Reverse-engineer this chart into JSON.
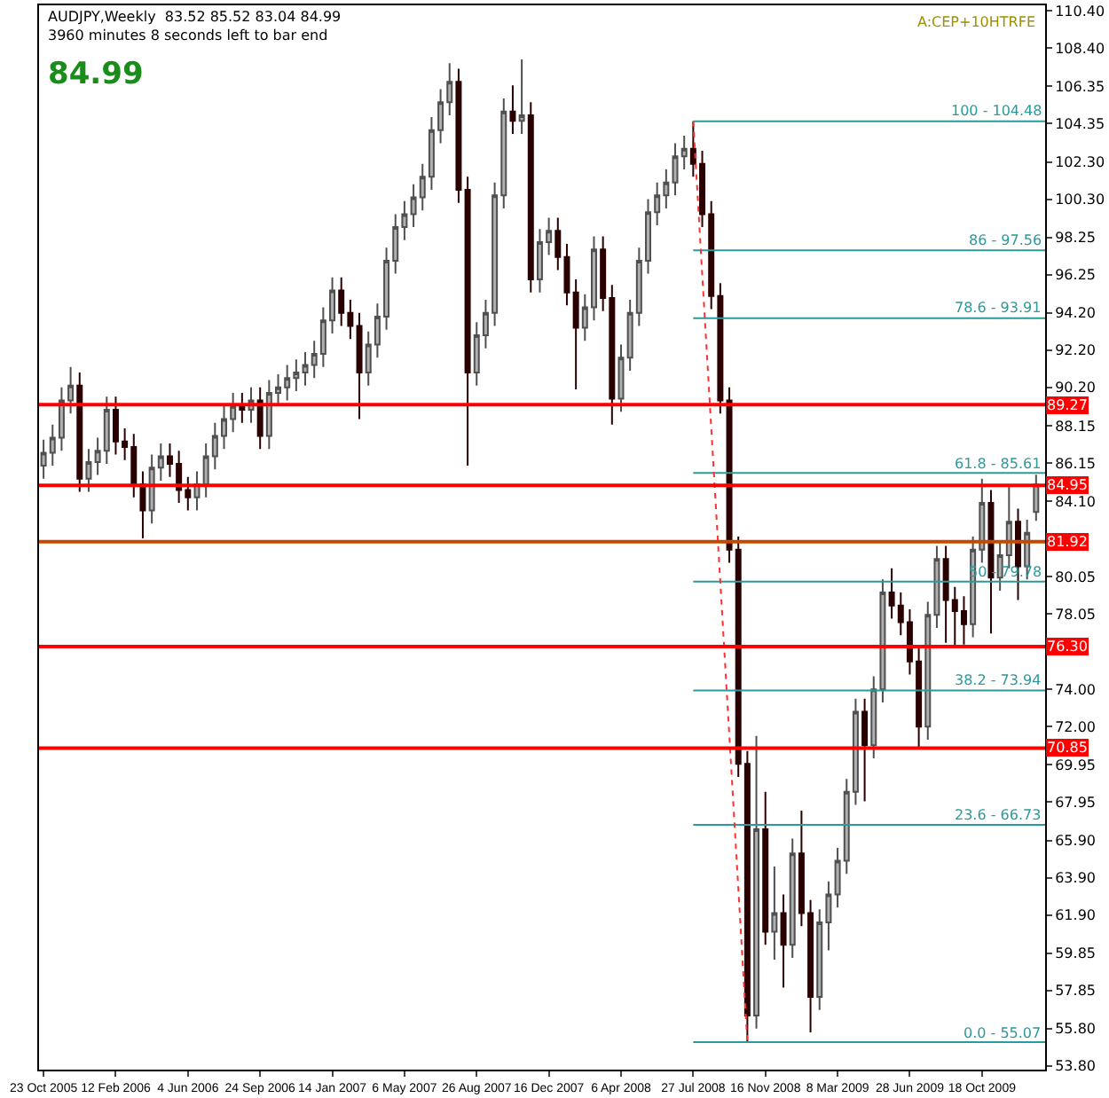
{
  "chart_data": {
    "type": "candlestick",
    "title": "AUDJPY,Weekly  83.52 85.52 83.04 84.99",
    "subtitle": "3960 minutes 8 seconds left to bar end",
    "annotations": [
      "84.99",
      "A:CEP+10HTRFE"
    ],
    "x": [
      "2005-10-23",
      "2005-11-06",
      "2005-11-20",
      "2005-12-04",
      "2005-12-18",
      "2006-01-01",
      "2006-01-15",
      "2006-01-29",
      "2006-02-12",
      "2006-02-26",
      "2006-03-12",
      "2006-03-26",
      "2006-04-09",
      "2006-04-23",
      "2006-05-07",
      "2006-05-21",
      "2006-06-04",
      "2006-06-18",
      "2006-07-02",
      "2006-07-16",
      "2006-07-30",
      "2006-08-13",
      "2006-08-27",
      "2006-09-10",
      "2006-09-24",
      "2006-10-08",
      "2006-10-22",
      "2006-11-05",
      "2006-11-19",
      "2006-12-03",
      "2006-12-17",
      "2006-12-31",
      "2007-01-14",
      "2007-01-28",
      "2007-02-11",
      "2007-02-25",
      "2007-03-11",
      "2007-03-25",
      "2007-04-08",
      "2007-04-22",
      "2007-05-06",
      "2007-05-20",
      "2007-06-03",
      "2007-06-17",
      "2007-07-01",
      "2007-07-15",
      "2007-07-29",
      "2007-08-12",
      "2007-08-26",
      "2007-09-09",
      "2007-09-23",
      "2007-10-07",
      "2007-10-21",
      "2007-11-04",
      "2007-11-18",
      "2007-12-02",
      "2007-12-16",
      "2007-12-30",
      "2008-01-13",
      "2008-01-27",
      "2008-02-10",
      "2008-02-24",
      "2008-03-09",
      "2008-03-23",
      "2008-04-06",
      "2008-04-20",
      "2008-05-04",
      "2008-05-18",
      "2008-06-01",
      "2008-06-15",
      "2008-06-29",
      "2008-07-13",
      "2008-07-27",
      "2008-08-10",
      "2008-08-24",
      "2008-09-07",
      "2008-09-21",
      "2008-10-05",
      "2008-10-19",
      "2008-11-02",
      "2008-11-16",
      "2008-11-30",
      "2008-12-14",
      "2008-12-28",
      "2009-01-11",
      "2009-01-25",
      "2009-02-08",
      "2009-02-22",
      "2009-03-08",
      "2009-03-22",
      "2009-04-05",
      "2009-04-19",
      "2009-05-03",
      "2009-05-17",
      "2009-05-31",
      "2009-06-14",
      "2009-06-28",
      "2009-07-12",
      "2009-07-26",
      "2009-08-09",
      "2009-08-23",
      "2009-09-06",
      "2009-09-20",
      "2009-10-04",
      "2009-10-18",
      "2009-11-01",
      "2009-11-15",
      "2009-11-29",
      "2009-12-13",
      "2009-12-27",
      "2010-01-10"
    ],
    "ohlc": [
      [
        86.0,
        87.4,
        85.3,
        86.7
      ],
      [
        86.7,
        88.2,
        86.0,
        87.5
      ],
      [
        87.5,
        90.2,
        86.8,
        89.5
      ],
      [
        89.5,
        91.3,
        88.8,
        90.3
      ],
      [
        90.3,
        91.0,
        84.6,
        85.3
      ],
      [
        85.3,
        86.9,
        84.6,
        86.2
      ],
      [
        86.2,
        87.5,
        85.5,
        86.8
      ],
      [
        86.8,
        89.7,
        86.1,
        89.0
      ],
      [
        89.0,
        89.7,
        86.6,
        87.3
      ],
      [
        87.3,
        88.0,
        86.3,
        87.0
      ],
      [
        87.0,
        87.7,
        84.3,
        85.0
      ],
      [
        85.0,
        85.7,
        82.1,
        83.6
      ],
      [
        83.6,
        86.6,
        82.9,
        85.9
      ],
      [
        85.9,
        87.2,
        85.2,
        86.5
      ],
      [
        86.5,
        87.2,
        85.4,
        86.1
      ],
      [
        86.1,
        86.8,
        84.0,
        84.7
      ],
      [
        84.7,
        85.4,
        83.6,
        84.3
      ],
      [
        84.3,
        85.7,
        83.6,
        85.0
      ],
      [
        85.0,
        87.2,
        84.3,
        86.5
      ],
      [
        86.5,
        88.3,
        85.8,
        87.6
      ],
      [
        87.6,
        89.2,
        86.9,
        88.5
      ],
      [
        88.5,
        89.9,
        87.8,
        89.2
      ],
      [
        89.2,
        89.9,
        88.3,
        89.0
      ],
      [
        89.0,
        90.2,
        88.3,
        89.5
      ],
      [
        89.5,
        90.2,
        86.9,
        87.6
      ],
      [
        87.6,
        90.6,
        86.9,
        89.9
      ],
      [
        89.9,
        90.9,
        89.2,
        90.2
      ],
      [
        90.2,
        91.4,
        89.5,
        90.7
      ],
      [
        90.7,
        91.7,
        90.0,
        91.0
      ],
      [
        91.0,
        92.1,
        90.3,
        91.4
      ],
      [
        91.4,
        92.7,
        90.7,
        92.0
      ],
      [
        92.0,
        94.5,
        91.3,
        93.8
      ],
      [
        93.8,
        96.1,
        93.1,
        95.4
      ],
      [
        95.4,
        96.1,
        93.5,
        94.2
      ],
      [
        94.2,
        94.9,
        92.8,
        93.5
      ],
      [
        93.5,
        94.2,
        88.5,
        91.0
      ],
      [
        91.0,
        93.2,
        90.3,
        92.5
      ],
      [
        92.5,
        94.7,
        91.8,
        94.0
      ],
      [
        94.0,
        97.7,
        93.3,
        97.0
      ],
      [
        97.0,
        99.5,
        96.3,
        98.8
      ],
      [
        98.8,
        100.2,
        98.1,
        99.5
      ],
      [
        99.5,
        101.1,
        98.8,
        100.4
      ],
      [
        100.4,
        102.2,
        99.7,
        101.5
      ],
      [
        101.5,
        104.7,
        100.8,
        104.0
      ],
      [
        104.0,
        106.2,
        103.3,
        105.5
      ],
      [
        105.5,
        107.6,
        104.8,
        106.6
      ],
      [
        106.6,
        107.3,
        100.1,
        100.8
      ],
      [
        100.8,
        101.5,
        86.0,
        91.0
      ],
      [
        91.0,
        93.7,
        90.3,
        93.0
      ],
      [
        93.0,
        94.9,
        92.3,
        94.2
      ],
      [
        94.2,
        101.2,
        93.5,
        100.5
      ],
      [
        100.5,
        105.7,
        99.8,
        105.0
      ],
      [
        105.0,
        106.4,
        103.8,
        104.5
      ],
      [
        104.5,
        107.8,
        103.8,
        104.8
      ],
      [
        104.8,
        105.5,
        95.3,
        96.0
      ],
      [
        96.0,
        98.7,
        95.3,
        98.0
      ],
      [
        98.0,
        99.3,
        97.3,
        98.6
      ],
      [
        98.6,
        99.3,
        96.5,
        97.2
      ],
      [
        97.2,
        97.9,
        94.6,
        95.3
      ],
      [
        95.3,
        96.0,
        90.1,
        93.4
      ],
      [
        93.4,
        95.2,
        92.7,
        94.5
      ],
      [
        94.5,
        98.3,
        93.8,
        97.6
      ],
      [
        97.6,
        98.3,
        94.3,
        95.0
      ],
      [
        95.0,
        95.7,
        88.2,
        89.6
      ],
      [
        89.6,
        92.5,
        88.9,
        91.8
      ],
      [
        91.8,
        94.9,
        91.1,
        94.2
      ],
      [
        94.2,
        97.7,
        93.5,
        97.0
      ],
      [
        97.0,
        100.3,
        96.3,
        99.6
      ],
      [
        99.6,
        101.2,
        98.9,
        100.5
      ],
      [
        100.5,
        101.9,
        99.8,
        101.2
      ],
      [
        101.2,
        103.3,
        100.5,
        102.6
      ],
      [
        102.6,
        103.7,
        101.9,
        103.0
      ],
      [
        103.0,
        104.48,
        101.5,
        102.2
      ],
      [
        102.2,
        102.9,
        98.8,
        99.5
      ],
      [
        99.5,
        100.2,
        94.4,
        95.1
      ],
      [
        95.1,
        95.8,
        88.8,
        89.5
      ],
      [
        89.5,
        90.2,
        80.8,
        81.5
      ],
      [
        81.5,
        82.2,
        69.3,
        70.0
      ],
      [
        70.0,
        70.7,
        55.07,
        56.5
      ],
      [
        56.5,
        71.5,
        55.8,
        66.5
      ],
      [
        66.5,
        68.5,
        60.3,
        61.0
      ],
      [
        61.0,
        64.5,
        59.5,
        62.0
      ],
      [
        62.0,
        63.0,
        58.0,
        60.3
      ],
      [
        60.3,
        66.0,
        59.6,
        65.2
      ],
      [
        65.2,
        67.5,
        61.3,
        62.0
      ],
      [
        62.0,
        62.7,
        55.6,
        57.5
      ],
      [
        57.5,
        62.2,
        56.8,
        61.5
      ],
      [
        61.5,
        63.7,
        60.0,
        63.0
      ],
      [
        63.0,
        65.5,
        62.3,
        64.8
      ],
      [
        64.8,
        69.2,
        64.1,
        68.5
      ],
      [
        68.5,
        73.5,
        67.8,
        72.8
      ],
      [
        72.8,
        73.5,
        68.0,
        71.0
      ],
      [
        71.0,
        74.7,
        70.3,
        74.0
      ],
      [
        74.0,
        79.9,
        73.3,
        79.2
      ],
      [
        79.2,
        80.5,
        77.8,
        78.5
      ],
      [
        78.5,
        79.2,
        76.9,
        77.6
      ],
      [
        77.6,
        78.3,
        74.8,
        75.5
      ],
      [
        75.5,
        76.2,
        70.9,
        72.0
      ],
      [
        72.0,
        78.7,
        71.3,
        78.0
      ],
      [
        78.0,
        81.7,
        77.3,
        81.0
      ],
      [
        81.0,
        81.7,
        76.5,
        78.8
      ],
      [
        78.8,
        79.5,
        76.3,
        78.2
      ],
      [
        78.2,
        79.0,
        76.4,
        77.5
      ],
      [
        77.5,
        82.2,
        76.8,
        81.5
      ],
      [
        81.5,
        85.3,
        80.8,
        84.0
      ],
      [
        84.0,
        84.7,
        77.0,
        80.0
      ],
      [
        80.0,
        81.9,
        79.3,
        81.2
      ],
      [
        81.2,
        85.0,
        80.5,
        83.0
      ],
      [
        83.0,
        83.7,
        78.8,
        80.6
      ],
      [
        80.6,
        83.1,
        79.9,
        82.4
      ],
      [
        83.52,
        85.52,
        83.04,
        84.99
      ]
    ],
    "series": [
      {
        "type": "line",
        "name": "100 - 104.48",
        "color": "#2a9a9a",
        "x": [
          "2008-07-27",
          "2010-01-24"
        ],
        "values": [
          104.48,
          104.48
        ]
      },
      {
        "type": "line",
        "name": "86 - 97.56",
        "color": "#2a9a9a",
        "x": [
          "2008-07-27",
          "2010-01-24"
        ],
        "values": [
          97.56,
          97.56
        ]
      },
      {
        "type": "line",
        "name": "78.6 - 93.91",
        "color": "#2a9a9a",
        "x": [
          "2008-07-27",
          "2010-01-24"
        ],
        "values": [
          93.91,
          93.91
        ]
      },
      {
        "type": "line",
        "name": "61.8 - 85.61",
        "color": "#2a9a9a",
        "x": [
          "2008-07-27",
          "2010-01-24"
        ],
        "values": [
          85.61,
          85.61
        ]
      },
      {
        "type": "line",
        "name": "50 - 79.78",
        "color": "#2a9a9a",
        "x": [
          "2008-07-27",
          "2010-01-24"
        ],
        "values": [
          79.78,
          79.78
        ]
      },
      {
        "type": "line",
        "name": "38.2 - 73.94",
        "color": "#2a9a9a",
        "x": [
          "2008-07-27",
          "2010-01-24"
        ],
        "values": [
          73.94,
          73.94
        ]
      },
      {
        "type": "line",
        "name": "23.6 - 66.73",
        "color": "#2a9a9a",
        "x": [
          "2008-07-27",
          "2010-01-24"
        ],
        "values": [
          66.73,
          66.73
        ]
      },
      {
        "type": "line",
        "name": "0.0 - 55.07",
        "color": "#2a9a9a",
        "x": [
          "2008-07-27",
          "2010-01-24"
        ],
        "values": [
          55.07,
          55.07
        ]
      },
      {
        "type": "line",
        "color": "#ff3030",
        "line_style": "dotted",
        "x": [
          "2008-07-27",
          "2008-10-19"
        ],
        "values": [
          104.48,
          55.07
        ]
      }
    ],
    "ref_lines": [
      {
        "axis": "y",
        "value": 89.27,
        "label": "89.27",
        "color": "#ff0000"
      },
      {
        "axis": "y",
        "value": 84.95,
        "label": "84.95",
        "color": "#ff0000"
      },
      {
        "axis": "y",
        "value": 81.92,
        "label": "81.92",
        "color": "#c84800"
      },
      {
        "axis": "y",
        "value": 76.3,
        "label": "76.30",
        "color": "#ff0000"
      },
      {
        "axis": "y",
        "value": 70.85,
        "label": "70.85",
        "color": "#ff0000"
      }
    ],
    "xlim": [
      "2005-10-16",
      "2010-01-24"
    ],
    "xticks": [
      {
        "value": "2005-10-23",
        "label": "23 Oct 2005"
      },
      {
        "value": "2006-02-12",
        "label": "12 Feb 2006"
      },
      {
        "value": "2006-06-04",
        "label": "4 Jun 2006"
      },
      {
        "value": "2006-09-24",
        "label": "24 Sep 2006"
      },
      {
        "value": "2007-01-14",
        "label": "14 Jan 2007"
      },
      {
        "value": "2007-05-06",
        "label": "6 May 2007"
      },
      {
        "value": "2007-08-26",
        "label": "26 Aug 2007"
      },
      {
        "value": "2007-12-16",
        "label": "16 Dec 2007"
      },
      {
        "value": "2008-04-06",
        "label": "6 Apr 2008"
      },
      {
        "value": "2008-07-27",
        "label": "27 Jul 2008"
      },
      {
        "value": "2008-11-16",
        "label": "16 Nov 2008"
      },
      {
        "value": "2009-03-08",
        "label": "8 Mar 2009"
      },
      {
        "value": "2009-06-28",
        "label": "28 Jun 2009"
      },
      {
        "value": "2009-10-18",
        "label": "18 Oct 2009"
      }
    ],
    "ylim": [
      53.6,
      110.7
    ],
    "yticks": [
      {
        "value": 110.4,
        "label": "110.40"
      },
      {
        "value": 108.4,
        "label": "108.40"
      },
      {
        "value": 106.35,
        "label": "106.35"
      },
      {
        "value": 104.35,
        "label": "104.35"
      },
      {
        "value": 102.3,
        "label": "102.30"
      },
      {
        "value": 100.3,
        "label": "100.30"
      },
      {
        "value": 98.25,
        "label": "98.25"
      },
      {
        "value": 96.25,
        "label": "96.25"
      },
      {
        "value": 94.2,
        "label": "94.20"
      },
      {
        "value": 92.2,
        "label": "92.20"
      },
      {
        "value": 90.2,
        "label": "90.20"
      },
      {
        "value": 88.15,
        "label": "88.15"
      },
      {
        "value": 86.15,
        "label": "86.15"
      },
      {
        "value": 84.1,
        "label": "84.10"
      },
      {
        "value": 80.05,
        "label": "80.05"
      },
      {
        "value": 78.05,
        "label": "78.05"
      },
      {
        "value": 74.0,
        "label": "74.00"
      },
      {
        "value": 72.0,
        "label": "72.00"
      },
      {
        "value": 69.95,
        "label": "69.95"
      },
      {
        "value": 67.95,
        "label": "67.95"
      },
      {
        "value": 65.9,
        "label": "65.90"
      },
      {
        "value": 63.9,
        "label": "63.90"
      },
      {
        "value": 61.9,
        "label": "61.90"
      },
      {
        "value": 59.85,
        "label": "59.85"
      },
      {
        "value": 57.85,
        "label": "57.85"
      },
      {
        "value": 55.8,
        "label": "55.80"
      },
      {
        "value": 53.8,
        "label": "53.80"
      }
    ]
  }
}
